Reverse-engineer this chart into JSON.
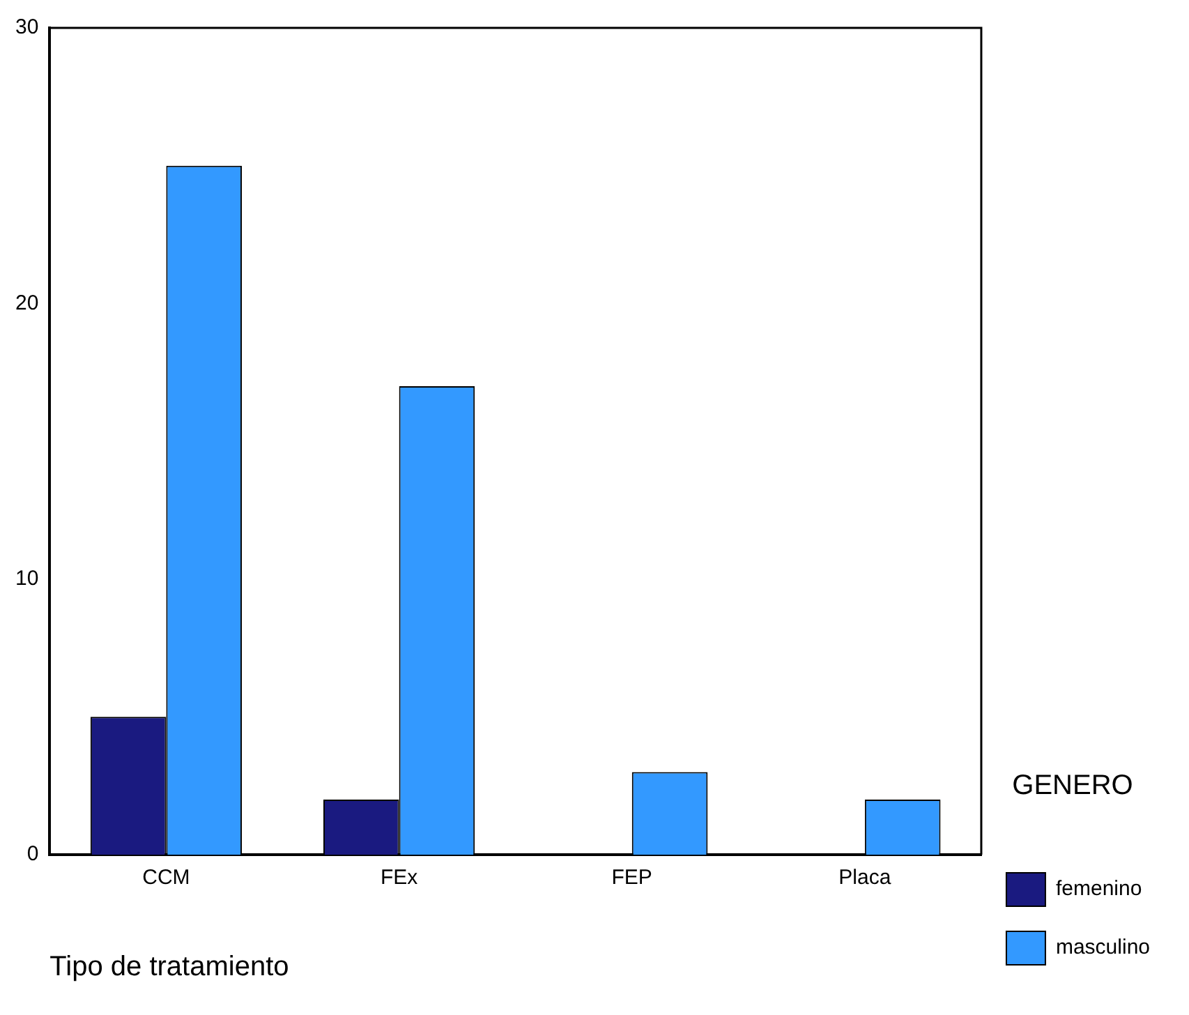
{
  "chart_data": {
    "type": "bar",
    "xlabel": "Tipo de tratamiento",
    "legend_title": "GENERO",
    "categories": [
      "CCM",
      "FEx",
      "FEP",
      "Placa"
    ],
    "series": [
      {
        "name": "femenino",
        "color": "#1a1a80",
        "values": [
          5,
          2,
          0,
          0
        ]
      },
      {
        "name": "masculino",
        "color": "#3399ff",
        "values": [
          25,
          17,
          3,
          2
        ]
      }
    ],
    "ylim": [
      0,
      30
    ],
    "yticks": [
      0,
      10,
      20,
      30
    ],
    "grid": false,
    "legend": "right"
  }
}
